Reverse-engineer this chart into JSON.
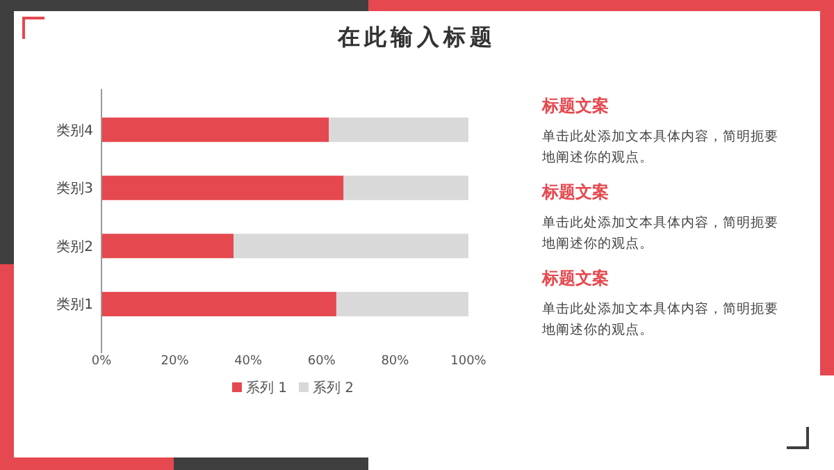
{
  "chart_data": {
    "type": "bar",
    "orientation": "horizontal",
    "stacked": true,
    "title": "在此输入标题",
    "categories": [
      "类别4",
      "类别3",
      "类别2",
      "类别1"
    ],
    "series": [
      {
        "name": "系列 1",
        "color": "#e5484f",
        "values": [
          62,
          66,
          36,
          64
        ]
      },
      {
        "name": "系列 2",
        "color": "#d9d9d9",
        "values": [
          38,
          34,
          64,
          36
        ]
      }
    ],
    "xlim": [
      0,
      100
    ],
    "xticks": [
      {
        "value": 0,
        "label": "0%"
      },
      {
        "value": 20,
        "label": "20%"
      },
      {
        "value": 40,
        "label": "40%"
      },
      {
        "value": 60,
        "label": "60%"
      },
      {
        "value": 80,
        "label": "80%"
      },
      {
        "value": 100,
        "label": "100%"
      }
    ],
    "legend": "bottom",
    "annotations": [
      "标题文案",
      "单击此处添加文本具体内容，简明扼要地阐述你的观点。",
      "标题文案",
      "单击此处添加文本具体内容，简明扼要地阐述你的观点。",
      "标题文案",
      "单击此处添加文本具体内容，简明扼要地阐述你的观点。"
    ]
  }
}
